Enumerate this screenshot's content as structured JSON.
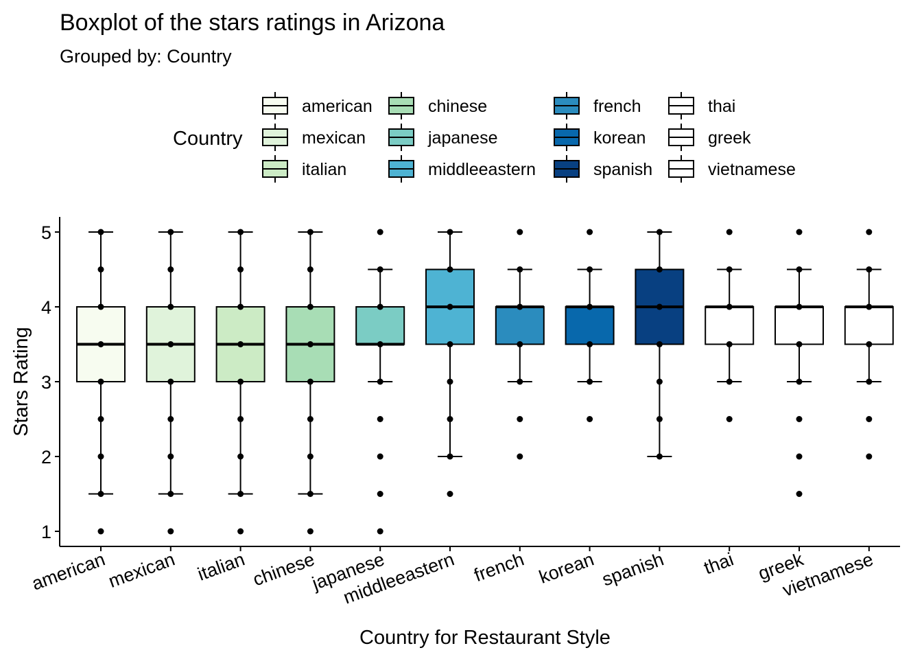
{
  "chart_data": {
    "type": "boxplot",
    "title": "Boxplot of the stars ratings in Arizona",
    "subtitle": "Grouped by: Country",
    "xlabel": "Country for Restaurant Style",
    "ylabel": "Stars Rating",
    "ylim": [
      0.8,
      5.2
    ],
    "yticks": [
      1,
      2,
      3,
      4,
      5
    ],
    "legend": {
      "title": "Country",
      "position": "top"
    },
    "grid": false,
    "categories": [
      "american",
      "mexican",
      "italian",
      "chinese",
      "japanese",
      "middleeastern",
      "french",
      "korean",
      "spanish",
      "thai",
      "greek",
      "vietnamese"
    ],
    "series": [
      {
        "name": "american",
        "color": "#F7FCF0",
        "q1": 3.0,
        "median": 3.5,
        "q3": 4.0,
        "whisker_low": 1.5,
        "whisker_high": 5.0,
        "points": [
          1,
          1.5,
          2,
          2.5,
          3,
          3.5,
          4,
          4.5,
          5
        ]
      },
      {
        "name": "mexican",
        "color": "#E0F3DB",
        "q1": 3.0,
        "median": 3.5,
        "q3": 4.0,
        "whisker_low": 1.5,
        "whisker_high": 5.0,
        "points": [
          1,
          1.5,
          2,
          2.5,
          3,
          3.5,
          4,
          4.5,
          5
        ]
      },
      {
        "name": "italian",
        "color": "#CCEBC5",
        "q1": 3.0,
        "median": 3.5,
        "q3": 4.0,
        "whisker_low": 1.5,
        "whisker_high": 5.0,
        "points": [
          1,
          1.5,
          2,
          2.5,
          3,
          3.5,
          4,
          4.5,
          5
        ]
      },
      {
        "name": "chinese",
        "color": "#A8DDB5",
        "q1": 3.0,
        "median": 3.5,
        "q3": 4.0,
        "whisker_low": 1.5,
        "whisker_high": 5.0,
        "points": [
          1,
          1.5,
          2,
          2.5,
          3,
          3.5,
          4,
          4.5,
          5
        ]
      },
      {
        "name": "japanese",
        "color": "#7BCCC4",
        "q1": 3.5,
        "median": 3.5,
        "q3": 4.0,
        "whisker_low": 3.0,
        "whisker_high": 4.5,
        "points": [
          1,
          1.5,
          2,
          2.5,
          3,
          3.5,
          4,
          4.5,
          5
        ]
      },
      {
        "name": "middleeastern",
        "color": "#4EB3D3",
        "q1": 3.5,
        "median": 4.0,
        "q3": 4.5,
        "whisker_low": 2.0,
        "whisker_high": 5.0,
        "points": [
          1.5,
          2,
          2.5,
          3,
          3.5,
          4,
          4.5,
          5
        ]
      },
      {
        "name": "french",
        "color": "#2B8CBE",
        "q1": 3.5,
        "median": 4.0,
        "q3": 4.0,
        "whisker_low": 3.0,
        "whisker_high": 4.5,
        "points": [
          2,
          2.5,
          3,
          3.5,
          4,
          4.5,
          5
        ]
      },
      {
        "name": "korean",
        "color": "#0868AC",
        "q1": 3.5,
        "median": 4.0,
        "q3": 4.0,
        "whisker_low": 3.0,
        "whisker_high": 4.5,
        "points": [
          2.5,
          3,
          3.5,
          4,
          4.5,
          5
        ]
      },
      {
        "name": "spanish",
        "color": "#084081",
        "q1": 3.5,
        "median": 4.0,
        "q3": 4.5,
        "whisker_low": 2.0,
        "whisker_high": 5.0,
        "points": [
          2,
          2.5,
          3,
          3.5,
          4,
          4.5,
          5
        ]
      },
      {
        "name": "thai",
        "color": "#FFFFFF",
        "q1": 3.5,
        "median": 4.0,
        "q3": 4.0,
        "whisker_low": 3.0,
        "whisker_high": 4.5,
        "points": [
          2.5,
          3,
          3.5,
          4,
          4.5,
          5
        ]
      },
      {
        "name": "greek",
        "color": "#FFFFFF",
        "q1": 3.5,
        "median": 4.0,
        "q3": 4.0,
        "whisker_low": 3.0,
        "whisker_high": 4.5,
        "points": [
          1.5,
          2,
          2.5,
          3,
          3.5,
          4,
          4.5,
          5
        ]
      },
      {
        "name": "vietnamese",
        "color": "#FFFFFF",
        "q1": 3.5,
        "median": 4.0,
        "q3": 4.0,
        "whisker_low": 3.0,
        "whisker_high": 4.5,
        "points": [
          2,
          2.5,
          3,
          3.5,
          4,
          4.5,
          5
        ]
      }
    ]
  }
}
